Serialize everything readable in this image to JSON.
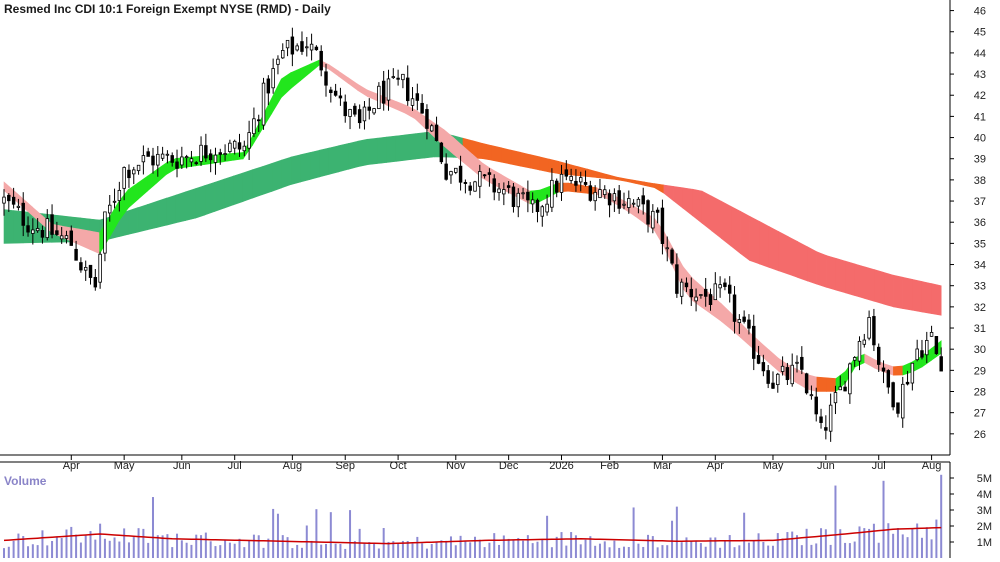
{
  "chart_data": {
    "type": "candlestick",
    "title": "Resmed Inc CDI 10:1 Foreign Exempt NYSE (RMD) - Daily",
    "price_axis": {
      "min": 25,
      "max": 46.5,
      "ticks": [
        26,
        27,
        28,
        29,
        30,
        31,
        32,
        33,
        34,
        35,
        36,
        37,
        38,
        39,
        40,
        41,
        42,
        43,
        44,
        45,
        46
      ]
    },
    "x_labels": [
      "Apr",
      "May",
      "Jun",
      "Jul",
      "Aug",
      "Sep",
      "Oct",
      "Nov",
      "Dec",
      "2026",
      "Feb",
      "Mar",
      "Apr",
      "May",
      "Jun",
      "Jul",
      "Aug"
    ],
    "x_label_index": [
      14,
      25,
      37,
      48,
      60,
      71,
      82,
      94,
      105,
      116,
      126,
      137,
      148,
      160,
      171,
      182,
      193
    ],
    "n_bars": 196,
    "price_keypoints": [
      [
        0,
        37.0
      ],
      [
        5,
        36.0
      ],
      [
        10,
        35.5
      ],
      [
        14,
        35.0
      ],
      [
        17,
        33.5
      ],
      [
        19,
        33.0
      ],
      [
        21,
        36.0
      ],
      [
        25,
        38.5
      ],
      [
        30,
        39.0
      ],
      [
        36,
        39.0
      ],
      [
        44,
        39.5
      ],
      [
        50,
        39.5
      ],
      [
        54,
        42.0
      ],
      [
        58,
        44.0
      ],
      [
        63,
        44.5
      ],
      [
        66,
        43.5
      ],
      [
        70,
        41.5
      ],
      [
        74,
        40.5
      ],
      [
        78,
        42.0
      ],
      [
        83,
        42.5
      ],
      [
        88,
        41.0
      ],
      [
        92,
        38.5
      ],
      [
        98,
        38.0
      ],
      [
        104,
        37.5
      ],
      [
        110,
        36.5
      ],
      [
        116,
        38.0
      ],
      [
        124,
        37.5
      ],
      [
        130,
        37.0
      ],
      [
        136,
        36.0
      ],
      [
        140,
        33.0
      ],
      [
        146,
        32.5
      ],
      [
        150,
        32.5
      ],
      [
        156,
        30.0
      ],
      [
        160,
        28.5
      ],
      [
        166,
        29.0
      ],
      [
        170,
        26.0
      ],
      [
        174,
        28.0
      ],
      [
        178,
        30.5
      ],
      [
        180,
        31.5
      ],
      [
        183,
        28.5
      ],
      [
        186,
        27.5
      ],
      [
        190,
        30.0
      ],
      [
        193,
        30.5
      ],
      [
        195,
        29.0
      ]
    ],
    "short_mma_band": {
      "lower": [
        [
          0,
          37.5
        ],
        [
          10,
          35.5
        ],
        [
          20,
          34.5
        ],
        [
          25,
          36.5
        ],
        [
          35,
          38.5
        ],
        [
          50,
          39.0
        ],
        [
          58,
          42.0
        ],
        [
          66,
          43.5
        ],
        [
          75,
          42.0
        ],
        [
          85,
          41.0
        ],
        [
          92,
          39.5
        ],
        [
          100,
          38.0
        ],
        [
          110,
          36.8
        ],
        [
          116,
          37.5
        ],
        [
          124,
          37.3
        ],
        [
          130,
          36.5
        ],
        [
          136,
          35.5
        ],
        [
          142,
          32.5
        ],
        [
          150,
          31.2
        ],
        [
          156,
          30.0
        ],
        [
          162,
          28.8
        ],
        [
          168,
          28.0
        ],
        [
          174,
          28.0
        ],
        [
          178,
          29.5
        ],
        [
          182,
          29.0
        ],
        [
          186,
          28.7
        ],
        [
          190,
          29.0
        ],
        [
          195,
          29.8
        ]
      ],
      "upper": [
        [
          0,
          37.9
        ],
        [
          10,
          35.9
        ],
        [
          20,
          35.5
        ],
        [
          25,
          37.4
        ],
        [
          35,
          39.0
        ],
        [
          50,
          39.3
        ],
        [
          58,
          42.9
        ],
        [
          66,
          43.7
        ],
        [
          75,
          42.3
        ],
        [
          85,
          41.4
        ],
        [
          92,
          40.3
        ],
        [
          100,
          38.7
        ],
        [
          110,
          37.4
        ],
        [
          116,
          37.9
        ],
        [
          124,
          37.6
        ],
        [
          130,
          36.9
        ],
        [
          136,
          36.1
        ],
        [
          142,
          33.6
        ],
        [
          150,
          32.0
        ],
        [
          156,
          30.6
        ],
        [
          162,
          29.4
        ],
        [
          168,
          28.7
        ],
        [
          174,
          28.6
        ],
        [
          178,
          29.9
        ],
        [
          182,
          29.4
        ],
        [
          186,
          29.1
        ],
        [
          190,
          29.5
        ],
        [
          195,
          30.4
        ]
      ]
    },
    "long_mma_band": {
      "lower": [
        [
          0,
          35.0
        ],
        [
          20,
          35.1
        ],
        [
          40,
          36.2
        ],
        [
          60,
          37.8
        ],
        [
          75,
          38.7
        ],
        [
          90,
          39.1
        ],
        [
          100,
          39.0
        ],
        [
          115,
          38.3
        ],
        [
          128,
          38.0
        ],
        [
          136,
          37.6
        ],
        [
          145,
          36.0
        ],
        [
          155,
          34.2
        ],
        [
          170,
          33.0
        ],
        [
          185,
          32.0
        ],
        [
          195,
          31.6
        ]
      ],
      "upper": [
        [
          0,
          36.6
        ],
        [
          20,
          36.1
        ],
        [
          40,
          37.6
        ],
        [
          60,
          39.1
        ],
        [
          75,
          39.9
        ],
        [
          90,
          40.3
        ],
        [
          100,
          39.7
        ],
        [
          115,
          38.9
        ],
        [
          128,
          38.1
        ],
        [
          136,
          37.8
        ],
        [
          145,
          37.5
        ],
        [
          155,
          36.3
        ],
        [
          170,
          34.5
        ],
        [
          185,
          33.5
        ],
        [
          195,
          33.0
        ]
      ]
    },
    "volume_axis": {
      "min": 0,
      "max": 5.5,
      "ticks": [
        1,
        2,
        3,
        4,
        5
      ],
      "tick_labels": [
        "1M",
        "2M",
        "3M",
        "4M",
        "5M"
      ]
    },
    "volume_label": "Volume",
    "volume_avg": [
      [
        0,
        1.1
      ],
      [
        20,
        1.5
      ],
      [
        35,
        1.2
      ],
      [
        50,
        1.1
      ],
      [
        65,
        1.0
      ],
      [
        80,
        0.9
      ],
      [
        100,
        1.1
      ],
      [
        120,
        1.2
      ],
      [
        140,
        1.05
      ],
      [
        160,
        1.1
      ],
      [
        175,
        1.5
      ],
      [
        185,
        1.8
      ],
      [
        195,
        1.9
      ]
    ],
    "colors": {
      "candle": "#000000",
      "short_green": "#22e61d",
      "short_orange": "#f26522",
      "short_pink": "#f4a8a8",
      "long_green": "#3cb371",
      "long_orange": "#f26522",
      "long_red": "#f46b6b",
      "volume_bar": "#8c8ad3",
      "volume_avg": "#cc0000",
      "grid": "#cccccc"
    }
  }
}
